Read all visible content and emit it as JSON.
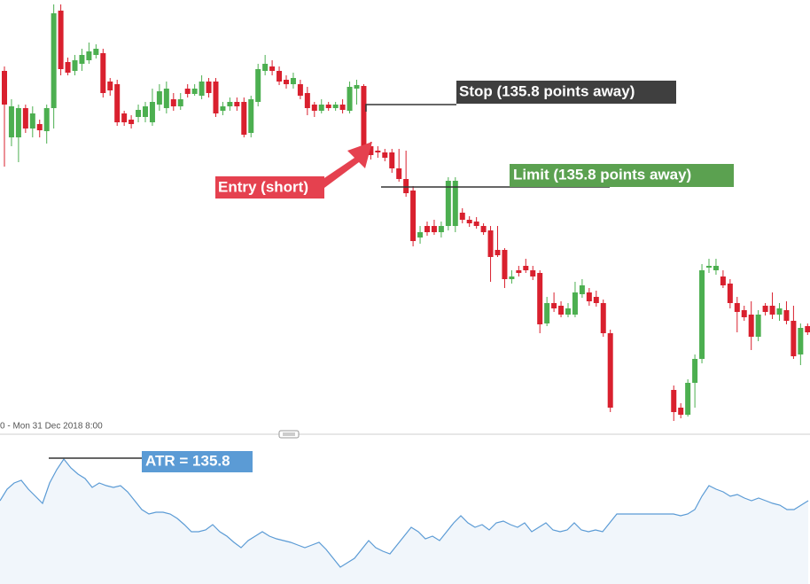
{
  "chart_data": {
    "type": "candlestick",
    "x_label": "0 - Mon 31 Dec 2018 8:00",
    "ylim": [
      0,
      480
    ],
    "up_color": "#4caf50",
    "down_color": "#d9202e",
    "ohlc": [
      [
        400,
        405,
        292,
        362
      ],
      [
        325,
        368,
        315,
        360
      ],
      [
        325,
        362,
        297,
        358
      ],
      [
        358,
        362,
        330,
        335
      ],
      [
        335,
        360,
        325,
        352
      ],
      [
        340,
        345,
        325,
        333
      ],
      [
        332,
        362,
        318,
        358
      ],
      [
        358,
        475,
        335,
        465
      ],
      [
        468,
        475,
        395,
        402
      ],
      [
        410,
        415,
        395,
        398
      ],
      [
        400,
        418,
        395,
        412
      ],
      [
        408,
        425,
        400,
        418
      ],
      [
        412,
        432,
        408,
        422
      ],
      [
        418,
        430,
        414,
        425
      ],
      [
        420,
        425,
        370,
        375
      ],
      [
        388,
        392,
        372,
        378
      ],
      [
        385,
        390,
        338,
        342
      ],
      [
        352,
        355,
        338,
        342
      ],
      [
        345,
        350,
        335,
        340
      ],
      [
        348,
        362,
        342,
        356
      ],
      [
        348,
        365,
        342,
        360
      ],
      [
        342,
        380,
        338,
        365
      ],
      [
        362,
        385,
        355,
        377
      ],
      [
        358,
        388,
        352,
        380
      ],
      [
        368,
        375,
        355,
        360
      ],
      [
        360,
        375,
        356,
        368
      ],
      [
        380,
        385,
        370,
        374
      ],
      [
        374,
        385,
        372,
        380
      ],
      [
        372,
        395,
        368,
        388
      ],
      [
        388,
        392,
        370,
        375
      ],
      [
        388,
        392,
        348,
        352
      ],
      [
        355,
        365,
        350,
        360
      ],
      [
        360,
        370,
        355,
        365
      ],
      [
        365,
        370,
        355,
        360
      ],
      [
        365,
        370,
        325,
        328
      ],
      [
        330,
        372,
        325,
        368
      ],
      [
        365,
        408,
        360,
        402
      ],
      [
        400,
        418,
        395,
        408
      ],
      [
        405,
        412,
        395,
        400
      ],
      [
        400,
        405,
        384,
        388
      ],
      [
        390,
        395,
        380,
        385
      ],
      [
        385,
        398,
        380,
        392
      ],
      [
        385,
        390,
        368,
        372
      ],
      [
        375,
        382,
        350,
        358
      ],
      [
        362,
        365,
        348,
        355
      ],
      [
        355,
        368,
        352,
        362
      ],
      [
        362,
        365,
        355,
        358
      ],
      [
        358,
        365,
        355,
        362
      ],
      [
        362,
        368,
        352,
        356
      ],
      [
        355,
        388,
        352,
        382
      ],
      [
        380,
        390,
        362,
        384
      ],
      [
        383,
        385,
        312,
        315
      ],
      [
        315,
        320,
        300,
        305
      ],
      [
        310,
        315,
        302,
        308
      ],
      [
        308,
        312,
        298,
        302
      ],
      [
        308,
        312,
        285,
        290
      ],
      [
        290,
        312,
        275,
        278
      ],
      [
        278,
        310,
        258,
        262
      ],
      [
        265,
        270,
        202,
        208
      ],
      [
        212,
        225,
        205,
        218
      ],
      [
        225,
        230,
        214,
        218
      ],
      [
        225,
        232,
        215,
        218
      ],
      [
        218,
        230,
        212,
        225
      ],
      [
        225,
        280,
        220,
        276
      ],
      [
        225,
        280,
        218,
        276
      ],
      [
        240,
        245,
        228,
        232
      ],
      [
        232,
        236,
        224,
        228
      ],
      [
        230,
        235,
        222,
        225
      ],
      [
        225,
        228,
        215,
        218
      ],
      [
        220,
        225,
        162,
        190
      ],
      [
        198,
        225,
        190,
        192
      ],
      [
        198,
        200,
        155,
        165
      ],
      [
        165,
        175,
        160,
        168
      ],
      [
        175,
        180,
        168,
        172
      ],
      [
        180,
        188,
        172,
        175
      ],
      [
        175,
        180,
        164,
        168
      ],
      [
        172,
        175,
        104,
        114
      ],
      [
        115,
        145,
        112,
        138
      ],
      [
        138,
        150,
        128,
        132
      ],
      [
        135,
        140,
        122,
        125
      ],
      [
        125,
        138,
        122,
        132
      ],
      [
        125,
        162,
        122,
        150
      ],
      [
        148,
        165,
        144,
        158
      ],
      [
        150,
        155,
        135,
        140
      ],
      [
        145,
        152,
        134,
        138
      ],
      [
        138,
        142,
        100,
        104
      ],
      [
        104,
        108,
        15,
        20
      ],
      null,
      null,
      null,
      null,
      null,
      null,
      null,
      null,
      [
        40,
        45,
        5,
        15
      ],
      [
        20,
        25,
        8,
        12
      ],
      [
        12,
        52,
        10,
        48
      ],
      [
        48,
        80,
        20,
        75
      ],
      [
        75,
        182,
        70,
        175
      ],
      [
        178,
        188,
        172,
        180
      ],
      [
        175,
        188,
        170,
        180
      ],
      [
        168,
        175,
        155,
        158
      ],
      [
        160,
        165,
        132,
        138
      ],
      [
        138,
        145,
        105,
        128
      ],
      [
        130,
        135,
        118,
        122
      ],
      [
        125,
        140,
        85,
        100
      ],
      [
        100,
        130,
        95,
        125
      ],
      [
        135,
        138,
        124,
        128
      ],
      [
        135,
        150,
        120,
        125
      ],
      [
        125,
        138,
        118,
        132
      ],
      [
        130,
        140,
        114,
        118
      ],
      [
        118,
        135,
        75,
        78
      ],
      [
        80,
        115,
        68,
        110
      ],
      [
        112,
        115,
        102,
        105
      ]
    ],
    "annotations": {
      "stop": "Stop (135.8 points away)",
      "limit": "Limit (135.8 points away)",
      "entry": "Entry (short)",
      "atr": "ATR = 135.8"
    },
    "indicator": {
      "type": "line",
      "color": "#5b9bd5",
      "ylim": [
        0,
        165
      ],
      "values": [
        95,
        108,
        115,
        118,
        108,
        100,
        92,
        115,
        130,
        142,
        132,
        125,
        120,
        110,
        115,
        112,
        110,
        112,
        105,
        95,
        85,
        80,
        82,
        82,
        80,
        75,
        68,
        60,
        60,
        62,
        68,
        60,
        55,
        48,
        42,
        50,
        55,
        60,
        55,
        52,
        50,
        48,
        45,
        42,
        45,
        48,
        40,
        30,
        20,
        25,
        30,
        40,
        50,
        42,
        38,
        35,
        45,
        55,
        65,
        60,
        52,
        55,
        50,
        60,
        70,
        78,
        70,
        65,
        68,
        62,
        70,
        72,
        68,
        65,
        70,
        60,
        65,
        70,
        62,
        60,
        62,
        70,
        62,
        60,
        62,
        60,
        70,
        80,
        80,
        80,
        80,
        80,
        80,
        80,
        80,
        80,
        78,
        80,
        85,
        100,
        112,
        108,
        105,
        100,
        102,
        98,
        95,
        98,
        95,
        92,
        90,
        85,
        85,
        90,
        95
      ]
    }
  }
}
